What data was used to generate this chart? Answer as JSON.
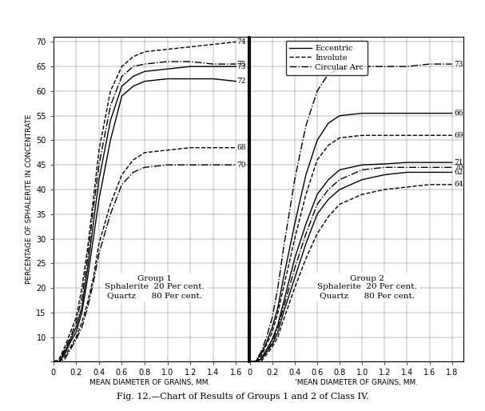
{
  "title": "Fig. 12.—Chart of Results of Groups 1 and 2 of Class IV.",
  "ylabel": "PERCENTAGE OF SPHALERITE IN CONCENTRATE",
  "xlabel1": "MEAN DIAMETER OF GRAINS, MM.",
  "xlabel2": "’MEAN DIAMETER OF GRAINS, MM.",
  "group1_label": "Group 1\nSphalerite  20 Per cent.\nQuartz      80 Per cent.",
  "group2_label": "Group 2\nSphalerite  20 Per cent.\nQuartz      80 Per cent.",
  "legend_entries": [
    "Eccentric",
    "Involute",
    "Circular Arc"
  ],
  "legend_styles": [
    "solid",
    "dashed",
    "dashdot"
  ],
  "ylim": [
    5,
    71
  ],
  "yticks": [
    5,
    10,
    15,
    20,
    25,
    30,
    35,
    40,
    45,
    50,
    55,
    60,
    65,
    70
  ],
  "group1_xlim": [
    0,
    1.7
  ],
  "group1_xticks": [
    0,
    0.2,
    0.4,
    0.6,
    0.8,
    1.0,
    1.2,
    1.4,
    1.6
  ],
  "group2_xlim": [
    0,
    1.9
  ],
  "group2_xticks": [
    0,
    0.2,
    0.4,
    0.6,
    0.8,
    1.0,
    1.2,
    1.4,
    1.6,
    1.8
  ],
  "group1_curves": [
    {
      "label": "74",
      "style": "dashed",
      "x": [
        0.0,
        0.05,
        0.1,
        0.15,
        0.2,
        0.25,
        0.3,
        0.35,
        0.4,
        0.5,
        0.6,
        0.7,
        0.8,
        1.0,
        1.2,
        1.4,
        1.6
      ],
      "y": [
        5.0,
        5.5,
        8,
        11,
        14,
        20,
        28,
        38,
        48,
        60,
        65,
        67,
        68,
        68.5,
        69,
        69.5,
        70
      ]
    },
    {
      "label": "75",
      "style": "dashdot",
      "x": [
        0.0,
        0.05,
        0.1,
        0.15,
        0.2,
        0.25,
        0.3,
        0.35,
        0.4,
        0.5,
        0.6,
        0.7,
        0.8,
        1.0,
        1.2,
        1.4,
        1.6
      ],
      "y": [
        5.0,
        5.0,
        7.5,
        10,
        13,
        18,
        26,
        36,
        45,
        57,
        63,
        65,
        65.5,
        66,
        66,
        65.5,
        65.5
      ]
    },
    {
      "label": "73",
      "style": "solid",
      "x": [
        0.0,
        0.05,
        0.1,
        0.15,
        0.2,
        0.25,
        0.3,
        0.35,
        0.4,
        0.5,
        0.6,
        0.7,
        0.8,
        1.0,
        1.2,
        1.4,
        1.6
      ],
      "y": [
        5.0,
        5.0,
        7,
        9.5,
        12,
        16,
        24,
        33,
        42,
        54,
        61,
        63,
        64,
        64.5,
        65,
        65,
        65
      ]
    },
    {
      "label": "72",
      "style": "solid",
      "x": [
        0.0,
        0.05,
        0.1,
        0.15,
        0.2,
        0.25,
        0.3,
        0.35,
        0.4,
        0.5,
        0.6,
        0.7,
        0.8,
        1.0,
        1.2,
        1.4,
        1.6
      ],
      "y": [
        5.0,
        5.0,
        6.5,
        9,
        11,
        15,
        22,
        30,
        38,
        50,
        59,
        61,
        62,
        62.5,
        62.5,
        62.5,
        62
      ]
    },
    {
      "label": "68",
      "style": "dashed",
      "x": [
        0.0,
        0.05,
        0.1,
        0.15,
        0.2,
        0.25,
        0.3,
        0.35,
        0.4,
        0.5,
        0.6,
        0.7,
        0.8,
        1.0,
        1.2,
        1.4,
        1.6
      ],
      "y": [
        5.0,
        5.0,
        6,
        8,
        10,
        13,
        17,
        22,
        29,
        37,
        43,
        46,
        47.5,
        48,
        48.5,
        48.5,
        48.5
      ]
    },
    {
      "label": "70",
      "style": "dashdot",
      "x": [
        0.0,
        0.05,
        0.1,
        0.15,
        0.2,
        0.25,
        0.3,
        0.35,
        0.4,
        0.5,
        0.6,
        0.7,
        0.8,
        1.0,
        1.2,
        1.4,
        1.6
      ],
      "y": [
        5.0,
        5.0,
        5.5,
        7.5,
        9.5,
        12,
        16,
        21,
        27,
        35,
        41,
        43.5,
        44.5,
        45,
        45,
        45,
        45
      ]
    }
  ],
  "group2_curves": [
    {
      "label": "73",
      "style": "dashdot",
      "x": [
        0.0,
        0.05,
        0.1,
        0.15,
        0.2,
        0.25,
        0.3,
        0.4,
        0.5,
        0.6,
        0.7,
        0.8,
        1.0,
        1.2,
        1.4,
        1.6,
        1.8
      ],
      "y": [
        5.0,
        5.0,
        7,
        10,
        14,
        20,
        28,
        42,
        53,
        60,
        63.5,
        64.5,
        65,
        65,
        65,
        65.5,
        65.5
      ]
    },
    {
      "label": "66",
      "style": "solid",
      "x": [
        0.0,
        0.05,
        0.1,
        0.15,
        0.2,
        0.25,
        0.3,
        0.4,
        0.5,
        0.6,
        0.7,
        0.8,
        1.0,
        1.2,
        1.4,
        1.6,
        1.8
      ],
      "y": [
        5.0,
        5.0,
        6.5,
        9,
        12,
        16,
        22,
        33,
        43,
        50,
        53.5,
        55,
        55.5,
        55.5,
        55.5,
        55.5,
        55.5
      ]
    },
    {
      "label": "69",
      "style": "dashed",
      "x": [
        0.0,
        0.05,
        0.1,
        0.15,
        0.2,
        0.25,
        0.3,
        0.4,
        0.5,
        0.6,
        0.7,
        0.8,
        1.0,
        1.2,
        1.4,
        1.6,
        1.8
      ],
      "y": [
        5.0,
        5.0,
        6,
        8.5,
        11,
        15,
        20,
        30,
        39,
        46,
        49,
        50.5,
        51,
        51,
        51,
        51,
        51
      ]
    },
    {
      "label": "71",
      "style": "solid",
      "x": [
        0.0,
        0.05,
        0.1,
        0.15,
        0.2,
        0.25,
        0.3,
        0.4,
        0.5,
        0.6,
        0.7,
        0.8,
        1.0,
        1.2,
        1.4,
        1.6,
        1.8
      ],
      "y": [
        5.0,
        5.0,
        5.5,
        7.5,
        9.5,
        12.5,
        17,
        26,
        33,
        39,
        42,
        44,
        45,
        45.2,
        45.5,
        45.5,
        45.5
      ]
    },
    {
      "label": "70",
      "style": "dashdot",
      "x": [
        0.0,
        0.05,
        0.1,
        0.15,
        0.2,
        0.25,
        0.3,
        0.4,
        0.5,
        0.6,
        0.7,
        0.8,
        1.0,
        1.2,
        1.4,
        1.6,
        1.8
      ],
      "y": [
        5.0,
        5.0,
        5.5,
        7,
        9,
        12,
        16,
        24,
        31,
        37,
        40,
        42,
        44,
        44.5,
        44.5,
        44.5,
        44.5
      ]
    },
    {
      "label": "62",
      "style": "solid",
      "x": [
        0.0,
        0.05,
        0.1,
        0.15,
        0.2,
        0.25,
        0.3,
        0.4,
        0.5,
        0.6,
        0.7,
        0.8,
        1.0,
        1.2,
        1.4,
        1.6,
        1.8
      ],
      "y": [
        5.0,
        5.0,
        5.5,
        7,
        8.5,
        11,
        15,
        22,
        29,
        35,
        38,
        40,
        42,
        43,
        43.5,
        43.5,
        43.5
      ]
    },
    {
      "label": "64",
      "style": "dashed",
      "x": [
        0.0,
        0.05,
        0.1,
        0.15,
        0.2,
        0.25,
        0.3,
        0.4,
        0.5,
        0.6,
        0.7,
        0.8,
        1.0,
        1.2,
        1.4,
        1.6,
        1.8
      ],
      "y": [
        5.0,
        5.0,
        5.0,
        6.5,
        8,
        10,
        13.5,
        20,
        26,
        31,
        34.5,
        37,
        39,
        40,
        40.5,
        41,
        41
      ]
    }
  ]
}
